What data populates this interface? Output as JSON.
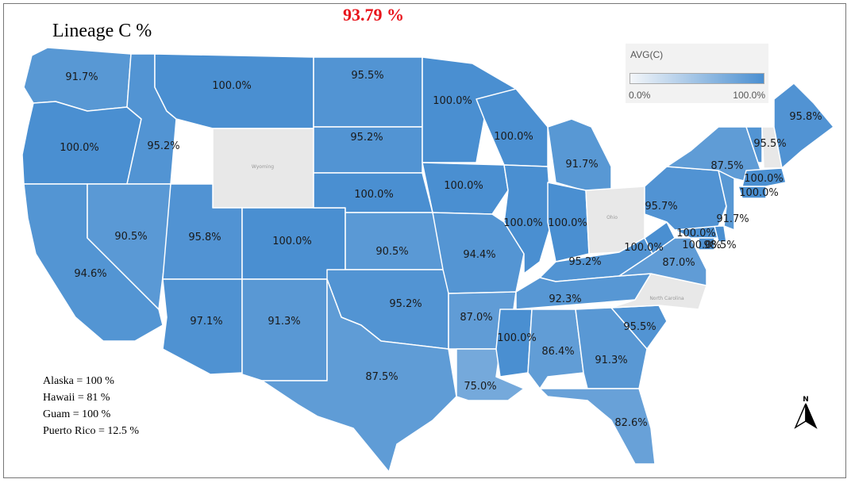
{
  "title": "Lineage C %",
  "headline_value": "93.79 %",
  "legend": {
    "title": "AVG(C)",
    "min_label": "0.0%",
    "max_label": "100.0%",
    "color_low": "#f4f6f9",
    "color_high": "#4a8fd1"
  },
  "colors": {
    "no_data": "#e8e8e8",
    "headline": "#e8141b"
  },
  "states": [
    {
      "id": "WA",
      "label": "91.7%",
      "value": 91.7
    },
    {
      "id": "OR",
      "label": "100.0%",
      "value": 100.0
    },
    {
      "id": "CA",
      "label": "94.6%",
      "value": 94.6
    },
    {
      "id": "ID",
      "label": "95.2%",
      "value": 95.2
    },
    {
      "id": "NV",
      "label": "90.5%",
      "value": 90.5
    },
    {
      "id": "MT",
      "label": "100.0%",
      "value": 100.0
    },
    {
      "id": "WY",
      "label": "Wyoming",
      "value": null
    },
    {
      "id": "UT",
      "label": "95.8%",
      "value": 95.8
    },
    {
      "id": "AZ",
      "label": "97.1%",
      "value": 97.1
    },
    {
      "id": "CO",
      "label": "100.0%",
      "value": 100.0
    },
    {
      "id": "NM",
      "label": "91.3%",
      "value": 91.3
    },
    {
      "id": "ND",
      "label": "95.5%",
      "value": 95.5
    },
    {
      "id": "SD",
      "label": "95.2%",
      "value": 95.2
    },
    {
      "id": "NE",
      "label": "100.0%",
      "value": 100.0
    },
    {
      "id": "KS",
      "label": "90.5%",
      "value": 90.5
    },
    {
      "id": "OK",
      "label": "95.2%",
      "value": 95.2
    },
    {
      "id": "TX",
      "label": "87.5%",
      "value": 87.5
    },
    {
      "id": "MN",
      "label": "100.0%",
      "value": 100.0
    },
    {
      "id": "IA",
      "label": "100.0%",
      "value": 100.0
    },
    {
      "id": "MO",
      "label": "94.4%",
      "value": 94.4
    },
    {
      "id": "AR",
      "label": "87.0%",
      "value": 87.0
    },
    {
      "id": "LA",
      "label": "75.0%",
      "value": 75.0
    },
    {
      "id": "WI",
      "label": "100.0%",
      "value": 100.0
    },
    {
      "id": "IL",
      "label": "100.0%",
      "value": 100.0
    },
    {
      "id": "MI",
      "label": "91.7%",
      "value": 91.7
    },
    {
      "id": "IN",
      "label": "100.0%",
      "value": 100.0
    },
    {
      "id": "OH",
      "label": "Ohio",
      "value": null
    },
    {
      "id": "KY",
      "label": "95.2%",
      "value": 95.2
    },
    {
      "id": "TN",
      "label": "92.3%",
      "value": 92.3
    },
    {
      "id": "MS",
      "label": "100.0%",
      "value": 100.0
    },
    {
      "id": "AL",
      "label": "86.4%",
      "value": 86.4
    },
    {
      "id": "GA",
      "label": "91.3%",
      "value": 91.3
    },
    {
      "id": "FL",
      "label": "82.6%",
      "value": 82.6
    },
    {
      "id": "SC",
      "label": "95.5%",
      "value": 95.5
    },
    {
      "id": "NC",
      "label": "North Carolina",
      "value": null
    },
    {
      "id": "VA",
      "label": "87.0%",
      "value": 87.0
    },
    {
      "id": "WV",
      "label": "100.0%",
      "value": 100.0
    },
    {
      "id": "MD",
      "label": "100.0%",
      "value": 100.0
    },
    {
      "id": "DE",
      "label": "100.0%",
      "value": 100.0
    },
    {
      "id": "DC",
      "label": "98.5%",
      "value": 98.5
    },
    {
      "id": "PA",
      "label": "95.7%",
      "value": 95.7
    },
    {
      "id": "NJ",
      "label": "91.7%",
      "value": 91.7
    },
    {
      "id": "NY",
      "label": "87.5%",
      "value": 87.5
    },
    {
      "id": "CT",
      "label": "100.0%",
      "value": 100.0
    },
    {
      "id": "MA",
      "label": "100.0%",
      "value": 100.0
    },
    {
      "id": "VT",
      "label": "95.5%",
      "value": 95.5
    },
    {
      "id": "NH",
      "label": "",
      "value": null
    },
    {
      "id": "ME",
      "label": "95.8%",
      "value": 95.8
    }
  ],
  "notes": [
    "Alaska = 100 %",
    "Hawaii = 81 %",
    "Guam = 100 %",
    "Puerto Rico = 12.5 %"
  ],
  "north_label": "N"
}
